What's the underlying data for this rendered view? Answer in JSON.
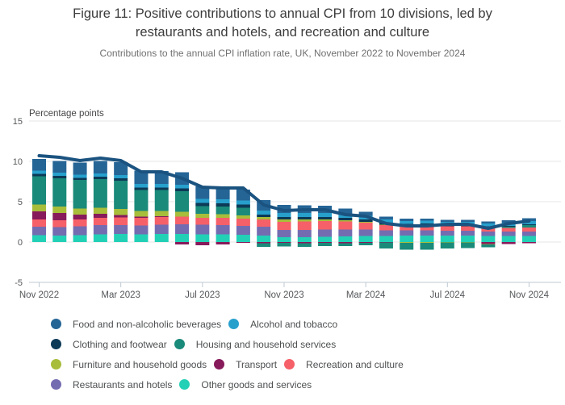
{
  "header": {
    "title": "Figure 11: Positive contributions to annual CPI from 10 divisions, led by restaurants and hotels, and recreation and culture",
    "subtitle": "Contributions to the annual CPI inflation rate, UK, November 2022 to November 2024"
  },
  "chart_data": {
    "type": "bar",
    "stacked": true,
    "title": "Figure 11: Positive contributions to annual CPI from 10 divisions, led by restaurants and hotels, and recreation and culture",
    "subtitle": "Contributions to the annual CPI inflation rate, UK, November 2022 to November 2024",
    "ylabel": "Percentage points",
    "ylim": [
      -5,
      15
    ],
    "yticks": [
      15,
      10,
      5,
      0,
      -5
    ],
    "grid": true,
    "x": [
      "Nov 2022",
      "Dec 2022",
      "Jan 2023",
      "Feb 2023",
      "Mar 2023",
      "Apr 2023",
      "May 2023",
      "Jun 2023",
      "Jul 2023",
      "Aug 2023",
      "Sep 2023",
      "Oct 2023",
      "Nov 2023",
      "Dec 2023",
      "Jan 2024",
      "Feb 2024",
      "Mar 2024",
      "Apr 2024",
      "May 2024",
      "Jun 2024",
      "Jul 2024",
      "Aug 2024",
      "Sep 2024",
      "Oct 2024",
      "Nov 2024"
    ],
    "xtick_indices": [
      0,
      4,
      8,
      12,
      16,
      20,
      24
    ],
    "series": [
      {
        "name": "Other goods and services",
        "color": "#22d0b6",
        "values": [
          0.85,
          0.8,
          0.85,
          0.95,
          1.0,
          0.95,
          1.0,
          1.0,
          0.95,
          0.95,
          0.9,
          0.8,
          0.6,
          0.6,
          0.65,
          0.7,
          0.75,
          0.75,
          0.8,
          0.8,
          0.8,
          0.8,
          0.75,
          0.75,
          0.75
        ]
      },
      {
        "name": "Restaurants and hotels",
        "color": "#746cb1",
        "values": [
          1.05,
          1.05,
          1.1,
          1.15,
          1.1,
          1.1,
          1.15,
          1.2,
          1.2,
          1.15,
          1.1,
          1.1,
          0.9,
          0.9,
          0.9,
          0.85,
          0.8,
          0.7,
          0.65,
          0.65,
          0.6,
          0.6,
          0.55,
          0.55,
          0.55
        ]
      },
      {
        "name": "Recreation and culture",
        "color": "#f66068",
        "values": [
          0.9,
          0.85,
          0.85,
          0.9,
          0.95,
          0.95,
          0.95,
          0.95,
          0.85,
          0.9,
          0.9,
          0.9,
          1.0,
          1.05,
          1.05,
          1.0,
          0.85,
          0.65,
          0.55,
          0.6,
          0.55,
          0.55,
          0.5,
          0.45,
          0.5
        ]
      },
      {
        "name": "Transport",
        "color": "#871a5b",
        "values": [
          1.0,
          0.9,
          0.6,
          0.5,
          0.3,
          0.15,
          0.1,
          -0.3,
          -0.4,
          -0.3,
          -0.1,
          -0.15,
          -0.1,
          -0.15,
          -0.1,
          -0.15,
          -0.1,
          -0.05,
          0.05,
          0.05,
          0.0,
          0.0,
          -0.25,
          -0.25,
          -0.15
        ]
      },
      {
        "name": "Furniture and household goods",
        "color": "#a8bd3a",
        "values": [
          0.85,
          0.8,
          0.75,
          0.75,
          0.75,
          0.7,
          0.65,
          0.6,
          0.5,
          0.45,
          0.4,
          0.3,
          0.3,
          0.25,
          0.2,
          0.15,
          0.1,
          0.05,
          -0.1,
          -0.1,
          -0.05,
          -0.05,
          -0.05,
          0.0,
          0.0
        ]
      },
      {
        "name": "Housing and household services",
        "color": "#1a8a7a",
        "values": [
          3.5,
          3.5,
          3.55,
          3.55,
          3.5,
          2.6,
          2.6,
          2.55,
          0.95,
          0.95,
          0.95,
          -0.45,
          -0.45,
          -0.45,
          -0.4,
          -0.35,
          -0.3,
          -0.75,
          -0.85,
          -0.85,
          -0.75,
          -0.7,
          -0.35,
          0.15,
          0.3
        ]
      },
      {
        "name": "Clothing and footwear",
        "color": "#0c3a57",
        "values": [
          0.3,
          0.3,
          0.25,
          0.3,
          0.3,
          0.3,
          0.3,
          0.35,
          0.4,
          0.4,
          0.4,
          0.3,
          0.3,
          0.3,
          0.3,
          0.3,
          0.3,
          0.25,
          0.2,
          0.2,
          0.2,
          0.2,
          0.15,
          0.1,
          0.1
        ]
      },
      {
        "name": "Alcohol and tobacco",
        "color": "#27a0cc",
        "values": [
          0.4,
          0.4,
          0.4,
          0.4,
          0.4,
          0.45,
          0.45,
          0.45,
          0.5,
          0.5,
          0.5,
          0.5,
          0.5,
          0.5,
          0.5,
          0.45,
          0.45,
          0.4,
          0.35,
          0.35,
          0.35,
          0.35,
          0.35,
          0.4,
          0.4
        ]
      },
      {
        "name": "Food and non-alcoholic beverages",
        "color": "#256596",
        "values": [
          1.45,
          1.45,
          1.5,
          1.55,
          1.6,
          1.65,
          1.6,
          1.55,
          1.55,
          1.45,
          1.35,
          1.3,
          1.0,
          0.95,
          0.9,
          0.7,
          0.5,
          0.35,
          0.3,
          0.25,
          0.25,
          0.25,
          0.25,
          0.3,
          0.35
        ]
      }
    ],
    "line": {
      "color": "#1b5380",
      "values": [
        10.7,
        10.5,
        10.1,
        10.4,
        10.1,
        8.7,
        8.7,
        7.9,
        6.8,
        6.7,
        6.7,
        4.6,
        3.9,
        4.0,
        4.0,
        3.4,
        3.2,
        2.3,
        2.0,
        2.0,
        2.2,
        2.2,
        1.7,
        2.3,
        2.6
      ]
    },
    "legend_position": "bottom"
  },
  "legend": {
    "rows": [
      [
        "Food and non-alcoholic beverages",
        "Alcohol and tobacco"
      ],
      [
        "Clothing and footwear",
        "Housing and household services"
      ],
      [
        "Furniture and household goods",
        "Transport",
        "Recreation and culture"
      ],
      [
        "Restaurants and hotels",
        "Other goods and services"
      ]
    ]
  }
}
